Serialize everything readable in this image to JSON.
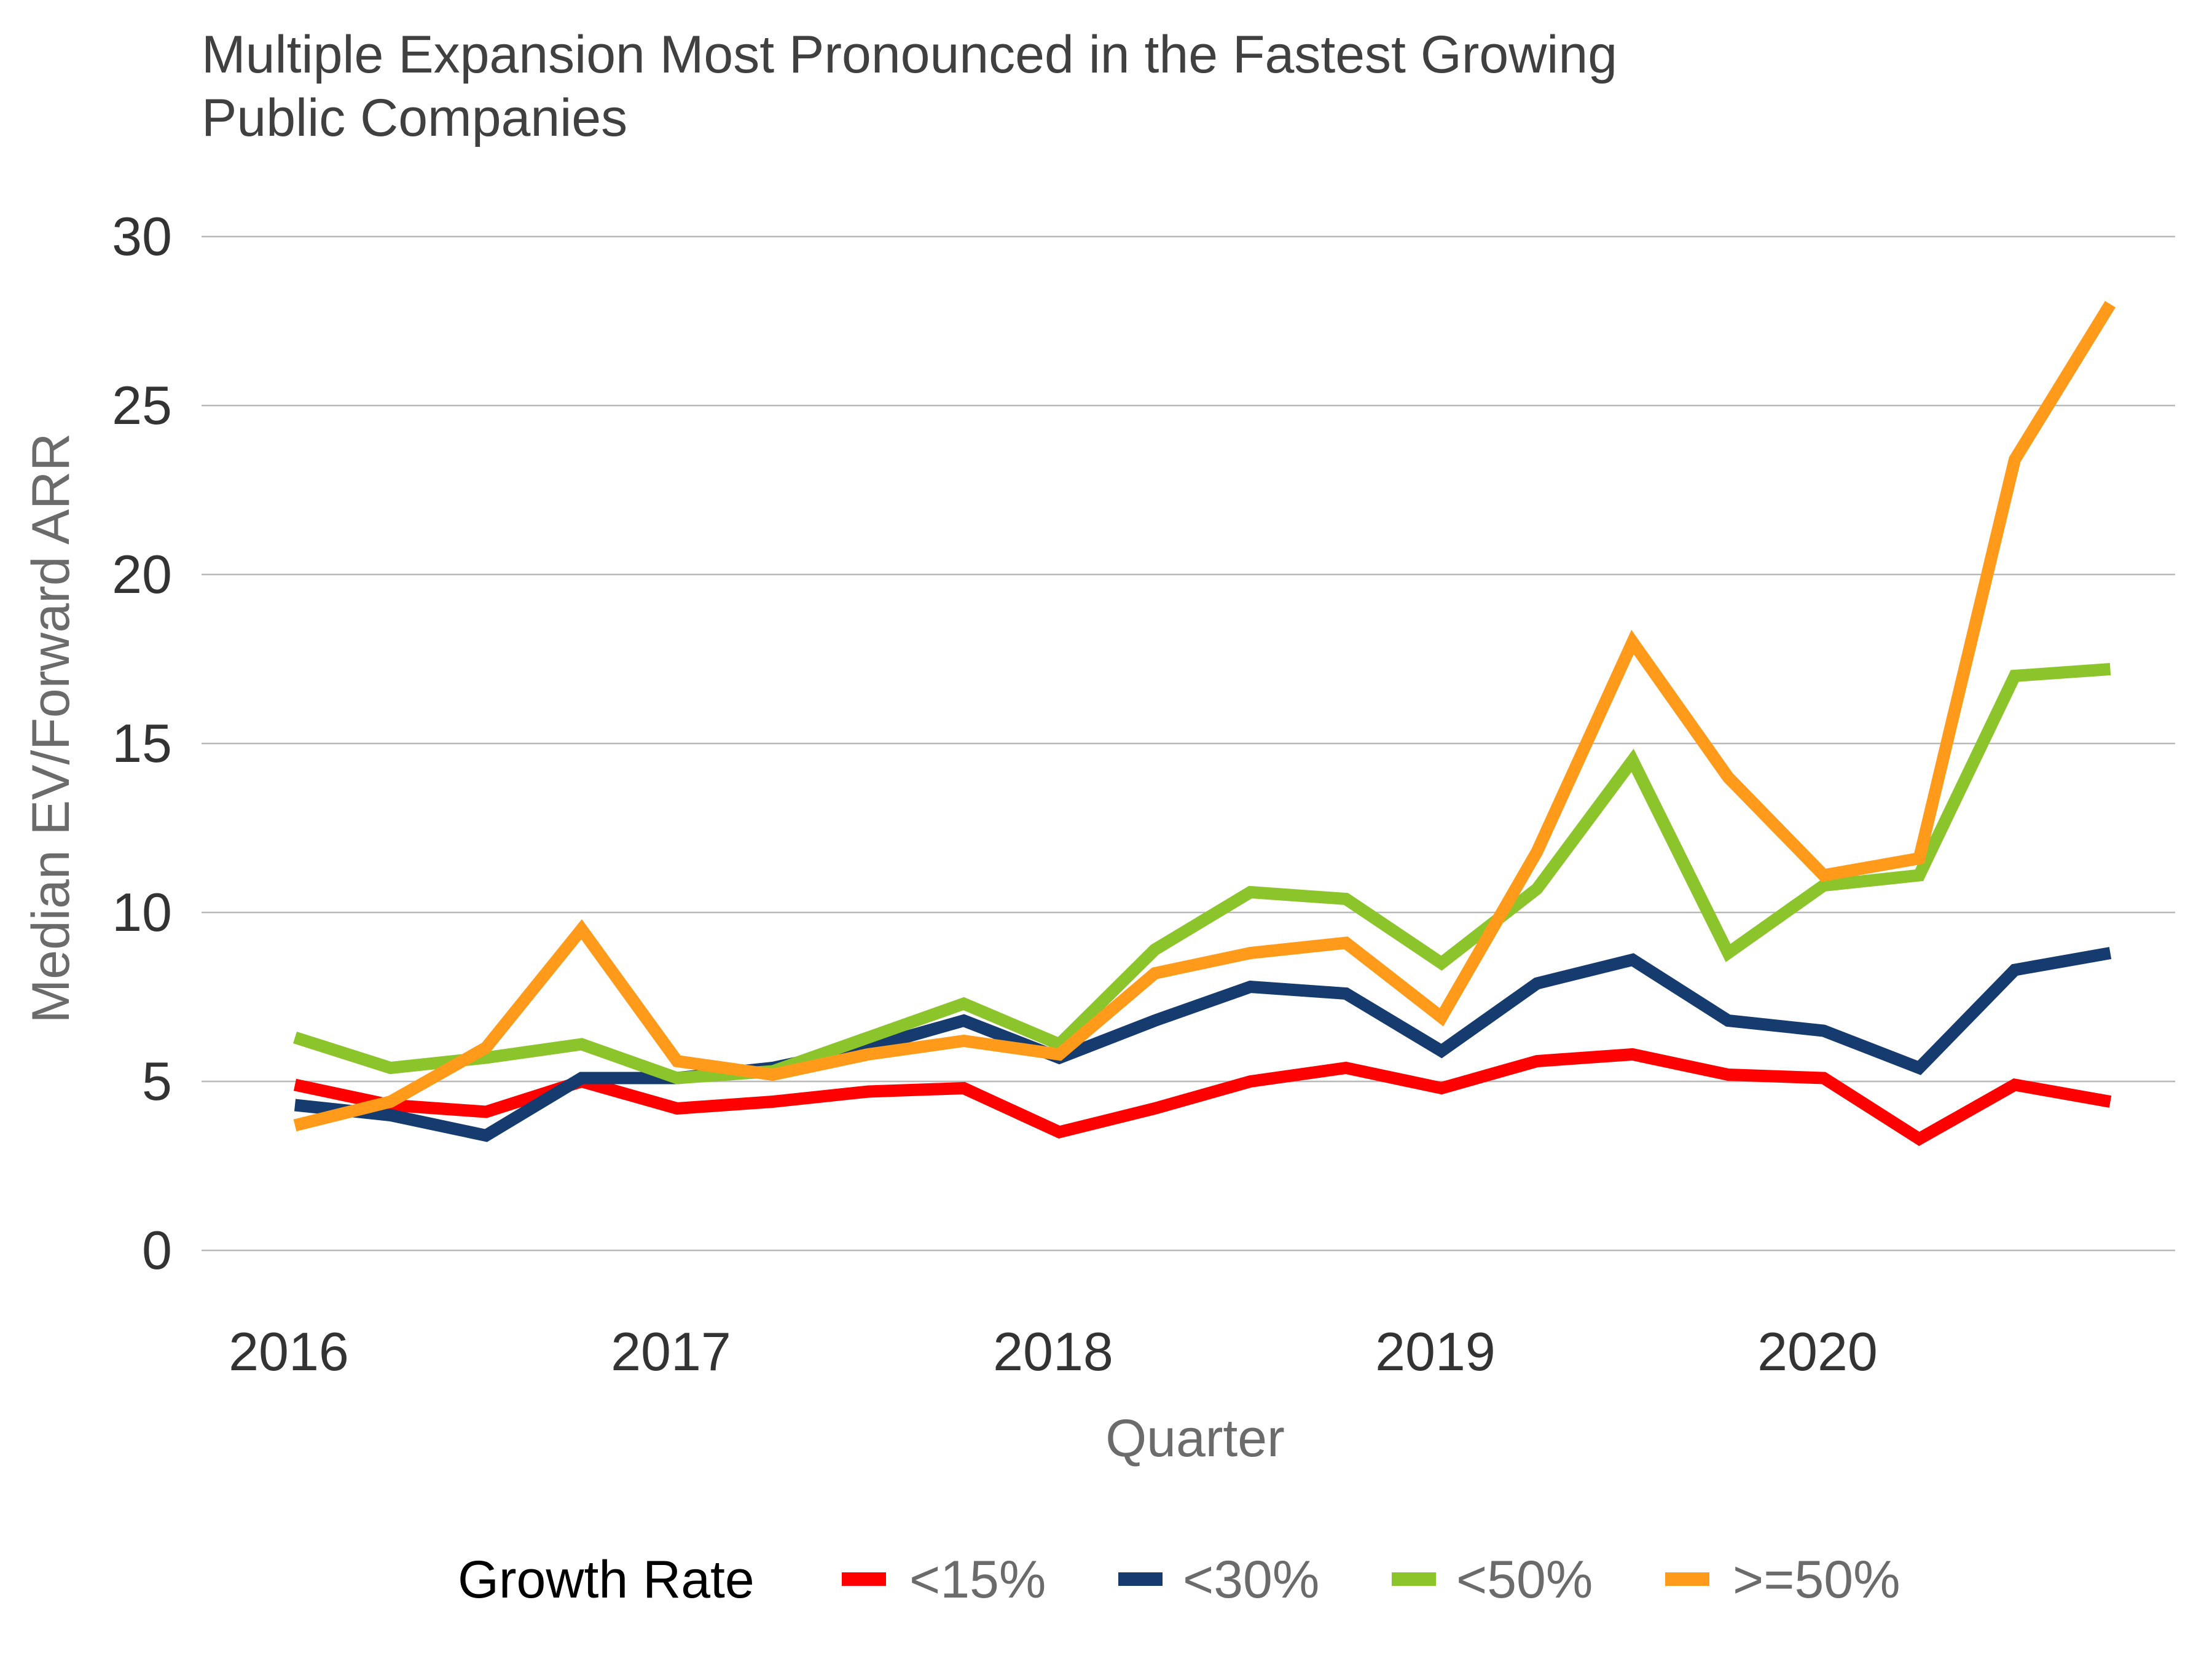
{
  "chart_data": {
    "type": "line",
    "title_lines": [
      "Multiple Expansion Most Pronounced in the Fastest Growing",
      "Public Companies"
    ],
    "xlabel": "Quarter",
    "ylabel": "Median EV/Forward ARR",
    "ylim": [
      0,
      30
    ],
    "yticks": [
      "0",
      "5",
      "10",
      "15",
      "20",
      "25",
      "30"
    ],
    "x": [
      "2016 Q1",
      "2016 Q2",
      "2016 Q3",
      "2016 Q4",
      "2017 Q1",
      "2017 Q2",
      "2017 Q3",
      "2017 Q4",
      "2018 Q1",
      "2018 Q2",
      "2018 Q3",
      "2018 Q4",
      "2019 Q1",
      "2019 Q2",
      "2019 Q3",
      "2019 Q4",
      "2020 Q1",
      "2020 Q2",
      "2020 Q3",
      "2020 Q4"
    ],
    "xtick_labels": [
      "2016",
      "2017",
      "2018",
      "2019",
      "2020"
    ],
    "grid": true,
    "legend": {
      "title": "Growth Rate",
      "position": "bottom"
    },
    "series": [
      {
        "name": "<15%",
        "color": "#ff0000",
        "values": [
          4.9,
          4.3,
          4.1,
          5.0,
          4.2,
          4.4,
          4.7,
          4.8,
          3.5,
          4.2,
          5.0,
          5.4,
          4.8,
          5.6,
          5.8,
          5.2,
          5.1,
          3.3,
          4.9,
          4.4
        ]
      },
      {
        "name": "<30%",
        "color": "#163b6f",
        "values": [
          4.3,
          4.0,
          3.4,
          5.1,
          5.1,
          5.4,
          6.0,
          6.8,
          5.7,
          6.8,
          7.8,
          7.6,
          5.9,
          7.9,
          8.6,
          6.8,
          6.5,
          5.4,
          8.3,
          8.8
        ]
      },
      {
        "name": "<50%",
        "color": "#8cc42b",
        "values": [
          6.3,
          5.4,
          5.7,
          6.1,
          5.1,
          5.3,
          6.3,
          7.3,
          6.1,
          8.9,
          10.6,
          10.4,
          8.5,
          10.7,
          14.5,
          8.8,
          10.8,
          11.1,
          17.0,
          17.2
        ]
      },
      {
        "name": ">=50%",
        "color": "#ff9a1a",
        "values": [
          3.7,
          4.4,
          6.0,
          9.5,
          5.6,
          5.2,
          5.8,
          6.2,
          5.8,
          8.2,
          8.8,
          9.1,
          6.9,
          11.8,
          18.0,
          14.0,
          11.1,
          11.6,
          23.4,
          28.0
        ]
      }
    ]
  }
}
